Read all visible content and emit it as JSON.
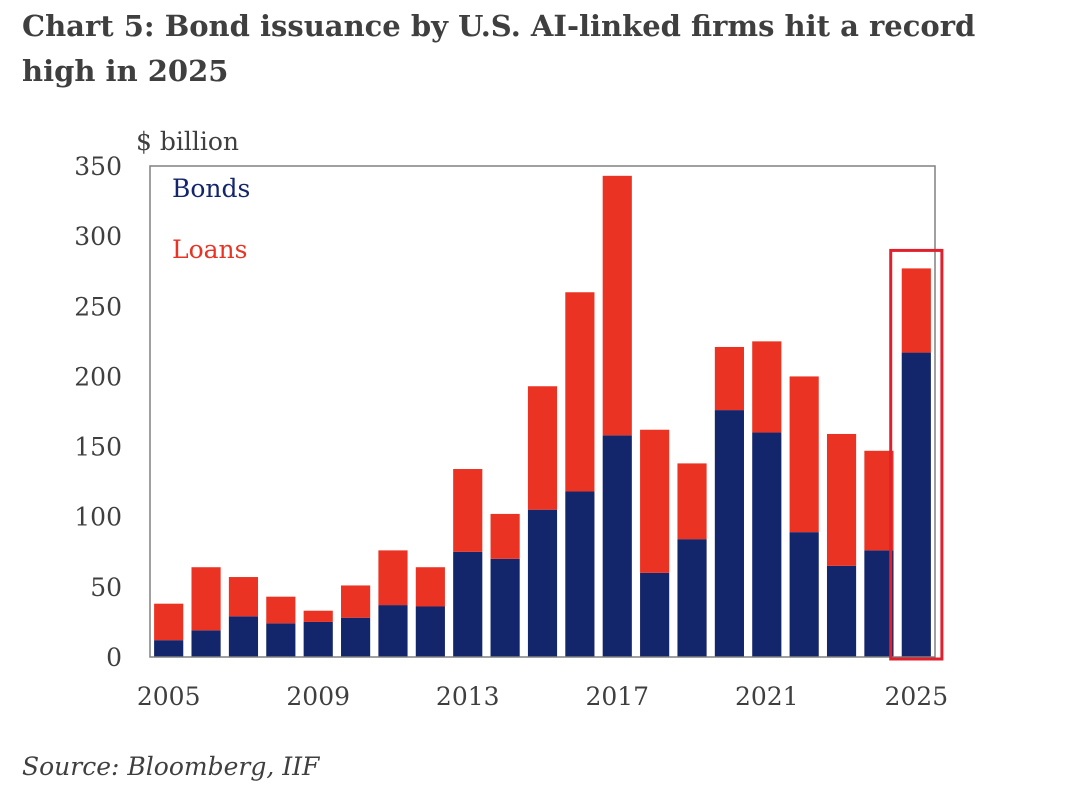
{
  "chart_data": {
    "type": "bar",
    "stacked": true,
    "title": "Chart 5: Bond issuance by U.S. AI-linked firms hit a record high in 2025",
    "ylabel": "$ billion",
    "xlabel": "",
    "ylim": [
      0,
      350
    ],
    "yticks": [
      0,
      50,
      100,
      150,
      200,
      250,
      300,
      350
    ],
    "x_tick_labels": [
      "2005",
      "2009",
      "2013",
      "2017",
      "2021",
      "2025"
    ],
    "categories": [
      "2005",
      "2006",
      "2007",
      "2008",
      "2009",
      "2010",
      "2011",
      "2012",
      "2013",
      "2014",
      "2015",
      "2016",
      "2017",
      "2018",
      "2019",
      "2020",
      "2021",
      "2022",
      "2023",
      "2024",
      "2025"
    ],
    "series": [
      {
        "name": "Bonds",
        "color": "#14266b",
        "values": [
          12,
          19,
          29,
          24,
          25,
          28,
          37,
          36,
          75,
          70,
          105,
          118,
          158,
          60,
          84,
          176,
          160,
          89,
          65,
          76,
          217
        ]
      },
      {
        "name": "Loans",
        "color": "#ea3323",
        "values": [
          26,
          45,
          28,
          19,
          8,
          23,
          39,
          28,
          59,
          32,
          88,
          142,
          185,
          102,
          54,
          45,
          65,
          111,
          94,
          71,
          60
        ]
      }
    ],
    "highlight": "2025",
    "legend_position": "top-left inside"
  },
  "source": "Source: Bloomberg, IIF",
  "colors": {
    "bonds": "#14266b",
    "loans": "#ea3323",
    "highlight": "#e0202d",
    "text": "#3f3f3f"
  }
}
